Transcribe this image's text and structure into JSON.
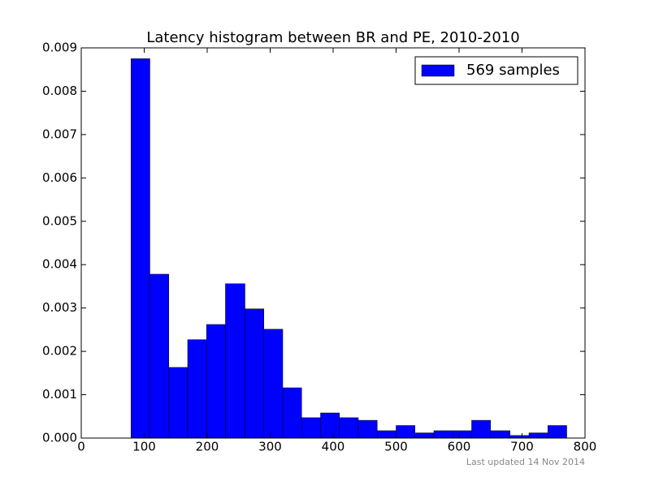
{
  "chart_data": {
    "type": "histogram",
    "title": "Latency histogram between BR and PE, 2010-2010",
    "bins": [
      79,
      109,
      139,
      169,
      199,
      229,
      260,
      290,
      320,
      350,
      380,
      410,
      440,
      470,
      500,
      530,
      560,
      590,
      620,
      650,
      681,
      711,
      741,
      771
    ],
    "series": [
      {
        "name": "569 samples",
        "color": "#0000ff",
        "values": [
          0.00875,
          0.00378,
          0.00163,
          0.00227,
          0.00262,
          0.00356,
          0.00298,
          0.00251,
          0.00116,
          0.00047,
          0.00058,
          0.00047,
          0.00041,
          0.00017,
          0.00029,
          0.00012,
          0.00017,
          0.00017,
          0.00041,
          0.00017,
          6e-05,
          0.00012,
          0.00029
        ]
      }
    ],
    "xlim": [
      0,
      800
    ],
    "xticks": [
      0,
      100,
      200,
      300,
      400,
      500,
      600,
      700,
      800
    ],
    "ylim": [
      0,
      0.009
    ],
    "yticks": [
      {
        "value": 0,
        "label": "0.000"
      },
      {
        "value": 0.001,
        "label": "0.001"
      },
      {
        "value": 0.002,
        "label": "0.002"
      },
      {
        "value": 0.003,
        "label": "0.003"
      },
      {
        "value": 0.004,
        "label": "0.004"
      },
      {
        "value": 0.005,
        "label": "0.005"
      },
      {
        "value": 0.006,
        "label": "0.006"
      },
      {
        "value": 0.007,
        "label": "0.007"
      },
      {
        "value": 0.008,
        "label": "0.008"
      },
      {
        "value": 0.009,
        "label": "0.009"
      }
    ],
    "legend": "upper right",
    "footnote": "Last updated 14 Nov 2014"
  }
}
